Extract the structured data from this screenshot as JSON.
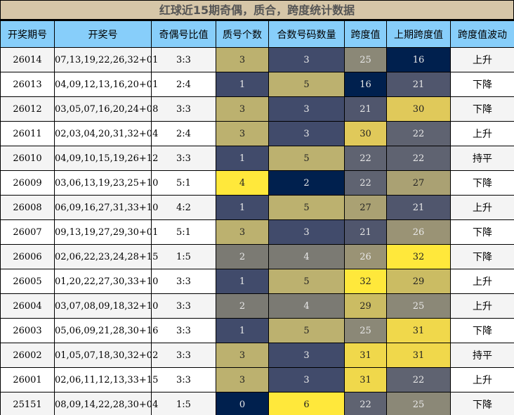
{
  "title": "红球近15期奇偶，质合，跨度统计数据",
  "headers": [
    "开奖期号",
    "开奖号",
    "奇偶号比值",
    "质号个数",
    "合数号码数量",
    "跨度值",
    "上期跨度值",
    "跨度值波动"
  ],
  "rows": [
    [
      "26014",
      "07,13,19,22,26,32+01",
      "3:3",
      "3",
      "3",
      "25",
      "16",
      "上升"
    ],
    [
      "26013",
      "04,09,12,13,16,20+01",
      "2:4",
      "1",
      "5",
      "16",
      "21",
      "下降"
    ],
    [
      "26012",
      "03,05,07,16,20,24+08",
      "3:3",
      "3",
      "3",
      "21",
      "30",
      "下降"
    ],
    [
      "26011",
      "02,03,04,20,31,32+04",
      "2:4",
      "3",
      "3",
      "30",
      "22",
      "上升"
    ],
    [
      "26010",
      "04,09,10,15,19,26+12",
      "3:3",
      "1",
      "5",
      "22",
      "22",
      "持平"
    ],
    [
      "26009",
      "03,06,13,19,23,25+10",
      "5:1",
      "4",
      "2",
      "22",
      "27",
      "下降"
    ],
    [
      "26008",
      "06,09,16,27,31,33+10",
      "4:2",
      "1",
      "5",
      "27",
      "21",
      "上升"
    ],
    [
      "26007",
      "09,13,19,27,29,30+01",
      "5:1",
      "3",
      "3",
      "21",
      "26",
      "下降"
    ],
    [
      "26006",
      "02,06,22,23,24,28+15",
      "1:5",
      "2",
      "4",
      "26",
      "32",
      "下降"
    ],
    [
      "26005",
      "01,20,22,27,30,33+10",
      "3:3",
      "1",
      "5",
      "32",
      "29",
      "上升"
    ],
    [
      "26004",
      "03,07,08,09,18,32+10",
      "3:3",
      "2",
      "4",
      "29",
      "25",
      "上升"
    ],
    [
      "26003",
      "05,06,09,21,28,30+16",
      "3:3",
      "1",
      "5",
      "25",
      "31",
      "下降"
    ],
    [
      "26002",
      "01,05,07,18,30,32+02",
      "3:3",
      "3",
      "3",
      "31",
      "31",
      "持平"
    ],
    [
      "26001",
      "02,06,11,12,13,33+15",
      "3:3",
      "3",
      "3",
      "31",
      "22",
      "上升"
    ],
    [
      "25151",
      "08,09,14,22,28,30+04",
      "1:5",
      "0",
      "6",
      "22",
      "25",
      "下降"
    ]
  ],
  "colors": {
    "prime": {
      "0": "#00204e",
      "1": "#414b6b",
      "2": "#7b7a73",
      "3": "#bcb16f",
      "4": "#ffe83b"
    },
    "composite": {
      "2": "#00204e",
      "3": "#414b6b",
      "4": "#7b7a73",
      "5": "#bcb16f",
      "6": "#ffe83b"
    },
    "span": {
      "16": "#00204e",
      "21": "#50566d",
      "22": "#5f6371",
      "25": "#8b8877",
      "26": "#9a9375",
      "27": "#aaa173",
      "29": "#cbbc63",
      "30": "#e0c95a",
      "31": "#f0d84b",
      "32": "#ffe83b"
    }
  }
}
